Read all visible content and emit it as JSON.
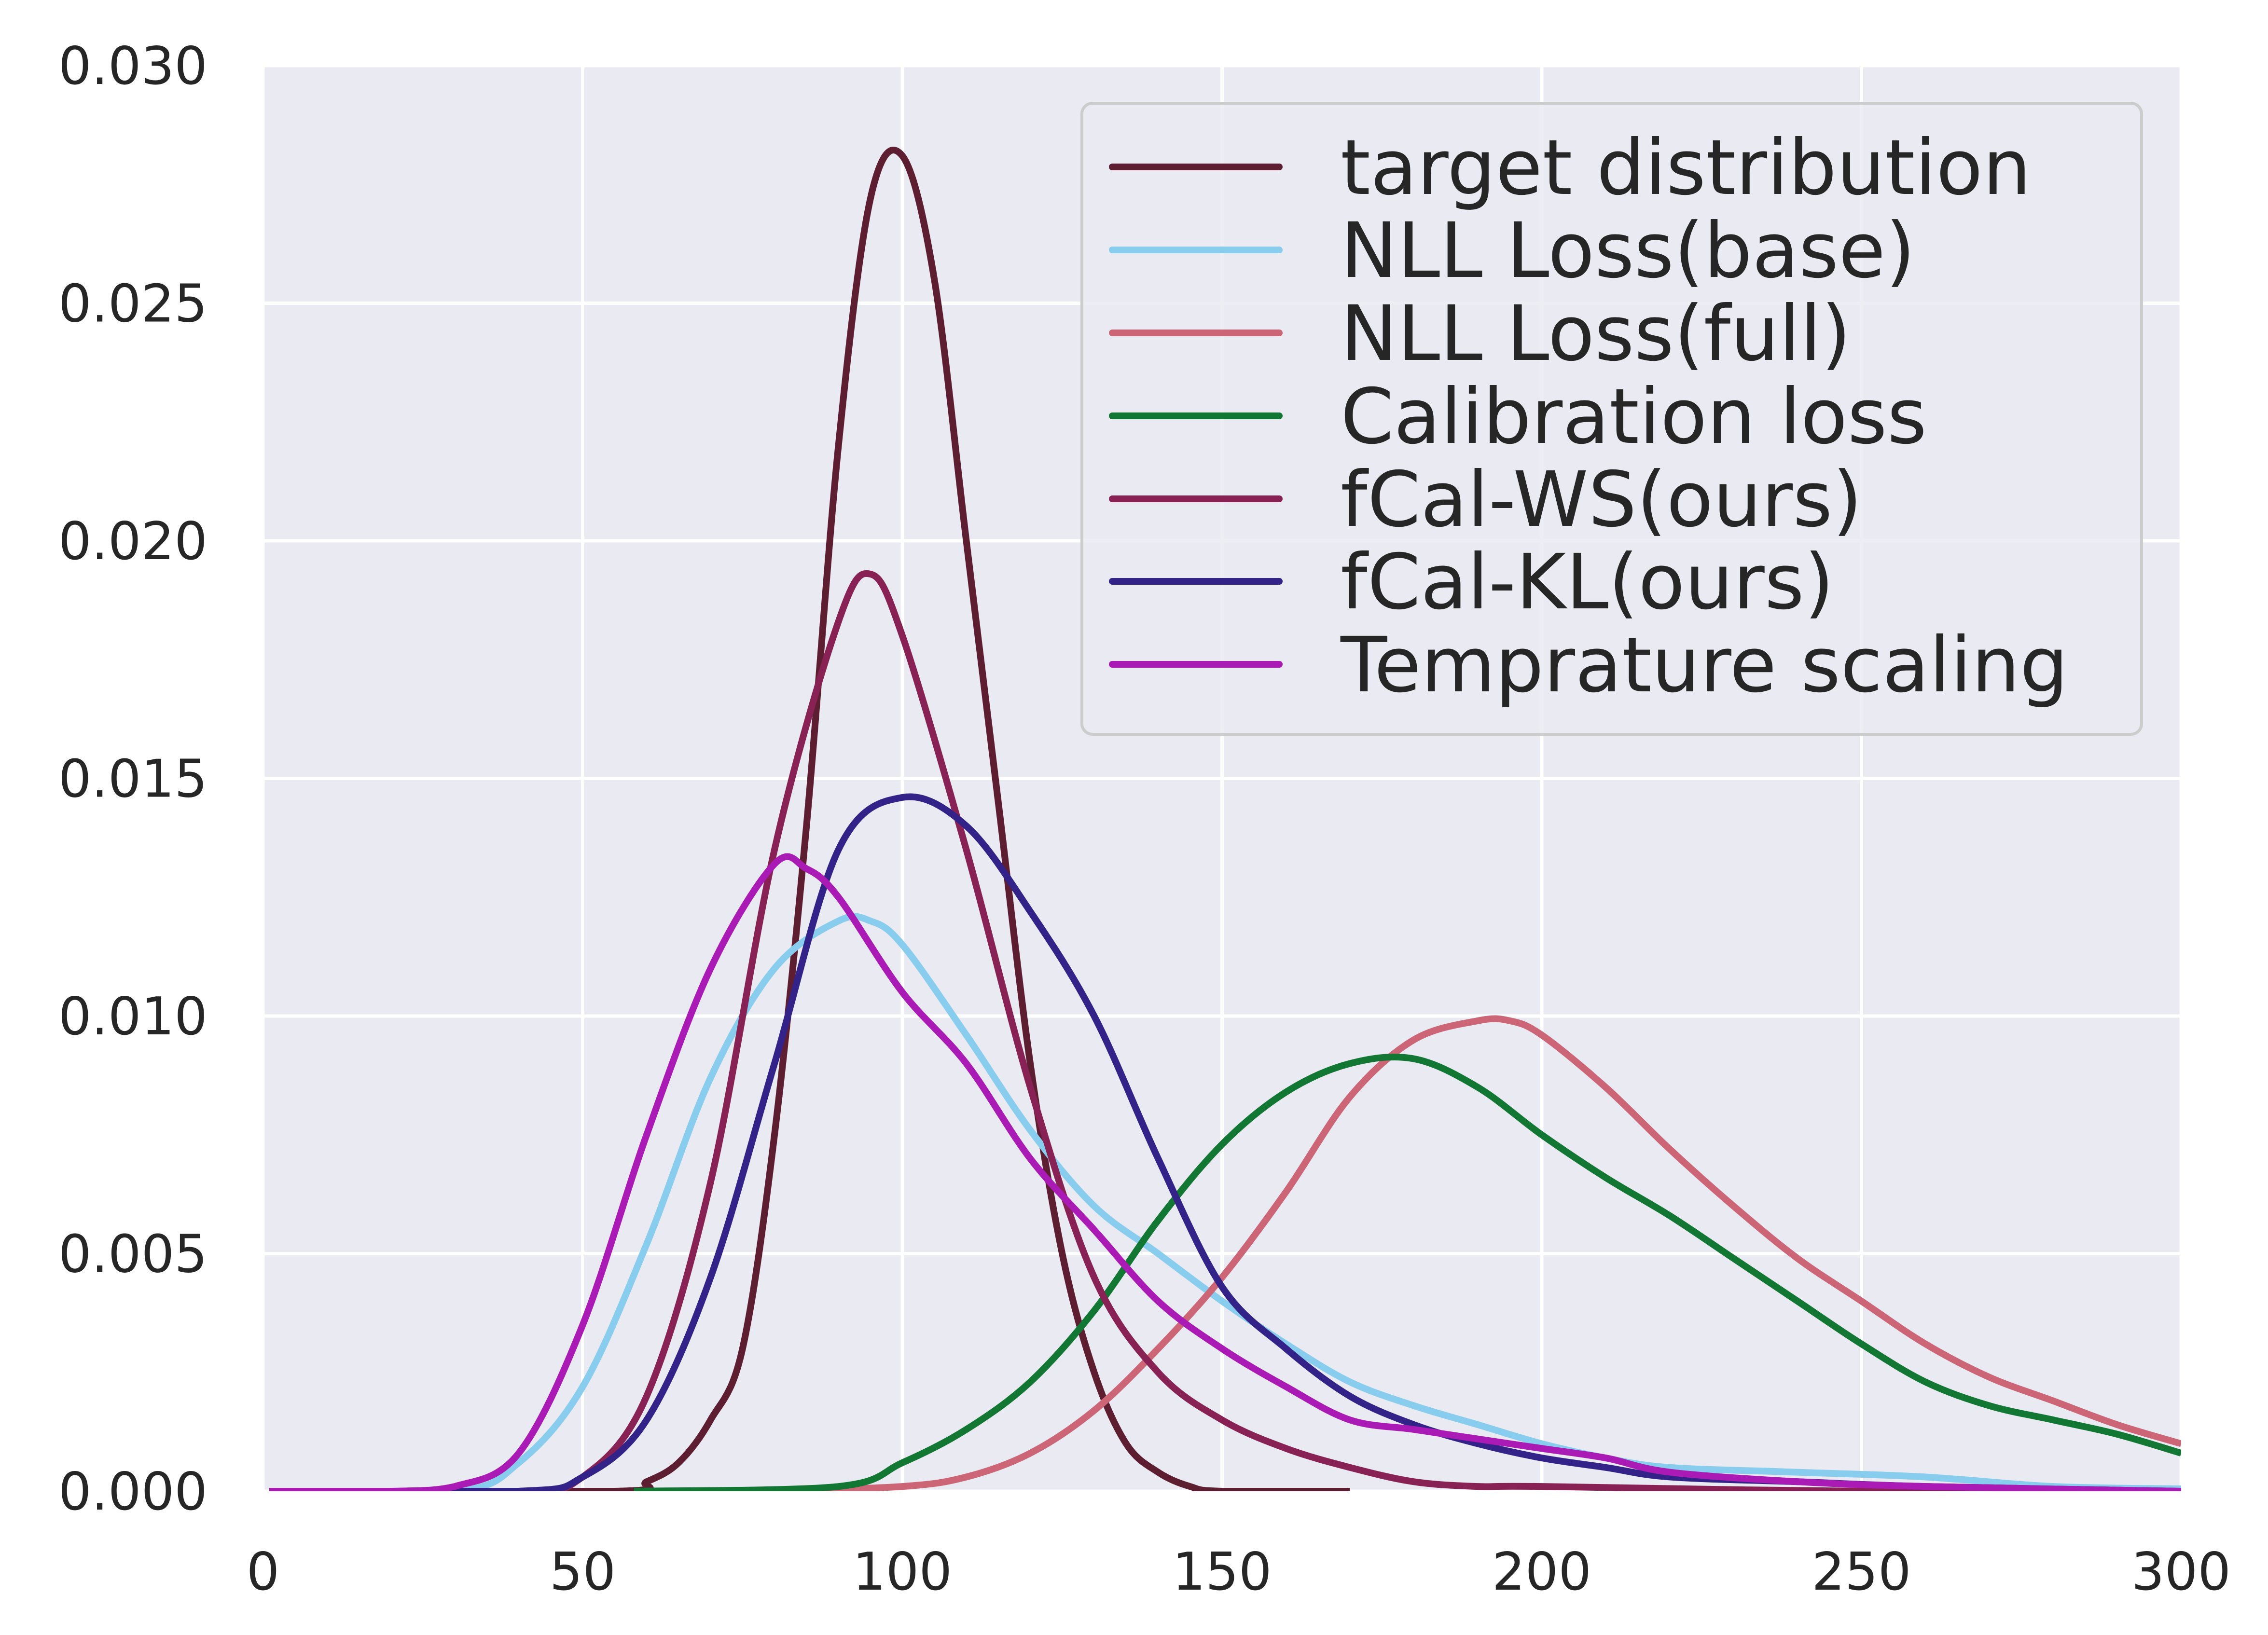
{
  "chart_data": {
    "type": "line",
    "title": "",
    "xlabel": "",
    "ylabel": "",
    "xlim": [
      0,
      300
    ],
    "ylim": [
      0,
      0.03
    ],
    "grid": true,
    "legend_position": "top-right",
    "xticks": [
      "0",
      "50",
      "100",
      "150",
      "200",
      "250",
      "300"
    ],
    "xtick_values": [
      0,
      50,
      100,
      150,
      200,
      250,
      300
    ],
    "yticks": [
      "0.000",
      "0.005",
      "0.010",
      "0.015",
      "0.020",
      "0.025",
      "0.030"
    ],
    "ytick_values": [
      0,
      0.005,
      0.01,
      0.015,
      0.02,
      0.025,
      0.03
    ],
    "series": [
      {
        "name": "target distribution",
        "color": "#5e1e31",
        "x": [
          1,
          55,
          60,
          65,
          70,
          75,
          80,
          85,
          90,
          95,
          100,
          105,
          110,
          115,
          120,
          125,
          130,
          135,
          140,
          145,
          150,
          170
        ],
        "y": [
          0,
          0,
          0.0002,
          0.0006,
          0.0015,
          0.003,
          0.0075,
          0.014,
          0.022,
          0.0272,
          0.0281,
          0.0255,
          0.02,
          0.0145,
          0.009,
          0.005,
          0.0025,
          0.001,
          0.0004,
          0.0001,
          0,
          0
        ]
      },
      {
        "name": "NLL Loss(base)",
        "color": "#88ccee",
        "x": [
          1,
          30,
          40,
          50,
          60,
          70,
          80,
          90,
          95,
          100,
          110,
          120,
          130,
          140,
          150,
          160,
          170,
          180,
          190,
          200,
          210,
          220,
          240,
          260,
          280,
          300
        ],
        "y": [
          0,
          0,
          0.0006,
          0.0022,
          0.0052,
          0.0087,
          0.011,
          0.012,
          0.012,
          0.0115,
          0.0096,
          0.0076,
          0.006,
          0.005,
          0.004,
          0.0031,
          0.0023,
          0.0018,
          0.0014,
          0.001,
          0.0007,
          0.0005,
          0.0004,
          0.0003,
          0.0001,
          5e-05
        ]
      },
      {
        "name": "NLL Loss(full)",
        "color": "#cc6677",
        "x": [
          80,
          100,
          110,
          120,
          130,
          140,
          150,
          160,
          170,
          180,
          190,
          195,
          200,
          210,
          220,
          230,
          240,
          250,
          260,
          270,
          280,
          290,
          300
        ],
        "y": [
          0,
          0.0001,
          0.0003,
          0.0008,
          0.0017,
          0.003,
          0.0045,
          0.0063,
          0.0083,
          0.0095,
          0.0099,
          0.0099,
          0.0096,
          0.0085,
          0.0072,
          0.006,
          0.0049,
          0.004,
          0.0031,
          0.0024,
          0.0019,
          0.0014,
          0.001
        ]
      },
      {
        "name": "Calibration loss",
        "color": "#117733",
        "x": [
          58,
          90,
          100,
          110,
          120,
          130,
          140,
          150,
          160,
          170,
          180,
          190,
          200,
          210,
          220,
          230,
          240,
          250,
          260,
          270,
          280,
          290,
          300
        ],
        "y": [
          0,
          0.0001,
          0.0006,
          0.0013,
          0.0023,
          0.0038,
          0.0057,
          0.0073,
          0.0084,
          0.009,
          0.0091,
          0.0085,
          0.0075,
          0.0066,
          0.0058,
          0.0049,
          0.004,
          0.0031,
          0.0023,
          0.0018,
          0.0015,
          0.0012,
          0.0008
        ]
      },
      {
        "name": "fCal-WS(ours)",
        "color": "#882255",
        "x": [
          1,
          40,
          50,
          60,
          70,
          80,
          90,
          95,
          100,
          110,
          120,
          130,
          140,
          150,
          160,
          170,
          180,
          190,
          200,
          250,
          300
        ],
        "y": [
          0,
          0,
          0.0003,
          0.002,
          0.0065,
          0.0135,
          0.0183,
          0.0193,
          0.018,
          0.0135,
          0.0085,
          0.0045,
          0.0025,
          0.0015,
          0.0009,
          0.0005,
          0.0002,
          0.0001,
          0.0001,
          0,
          0
        ]
      },
      {
        "name": "fCal-KL(ours)",
        "color": "#332288",
        "x": [
          1,
          40,
          50,
          60,
          70,
          80,
          90,
          100,
          110,
          120,
          130,
          140,
          150,
          160,
          170,
          180,
          190,
          200,
          210,
          220,
          240,
          260,
          300
        ],
        "y": [
          0,
          0,
          0.0003,
          0.0015,
          0.0045,
          0.009,
          0.0135,
          0.0146,
          0.014,
          0.0122,
          0.01,
          0.007,
          0.0043,
          0.003,
          0.002,
          0.0014,
          0.001,
          0.0007,
          0.0005,
          0.0003,
          0.0002,
          0.0001,
          0
        ]
      },
      {
        "name": "Temprature scaling",
        "color": "#aa1ab4",
        "x": [
          1,
          20,
          30,
          40,
          50,
          60,
          70,
          80,
          85,
          90,
          100,
          110,
          120,
          130,
          140,
          150,
          160,
          170,
          180,
          190,
          200,
          210,
          220,
          240,
          260,
          300
        ],
        "y": [
          0,
          0,
          0.0001,
          0.0008,
          0.0035,
          0.0075,
          0.011,
          0.0132,
          0.0131,
          0.0125,
          0.0105,
          0.009,
          0.007,
          0.0055,
          0.004,
          0.003,
          0.0022,
          0.0015,
          0.0013,
          0.0011,
          0.0009,
          0.0007,
          0.0004,
          0.0002,
          0.0001,
          0
        ]
      }
    ]
  }
}
